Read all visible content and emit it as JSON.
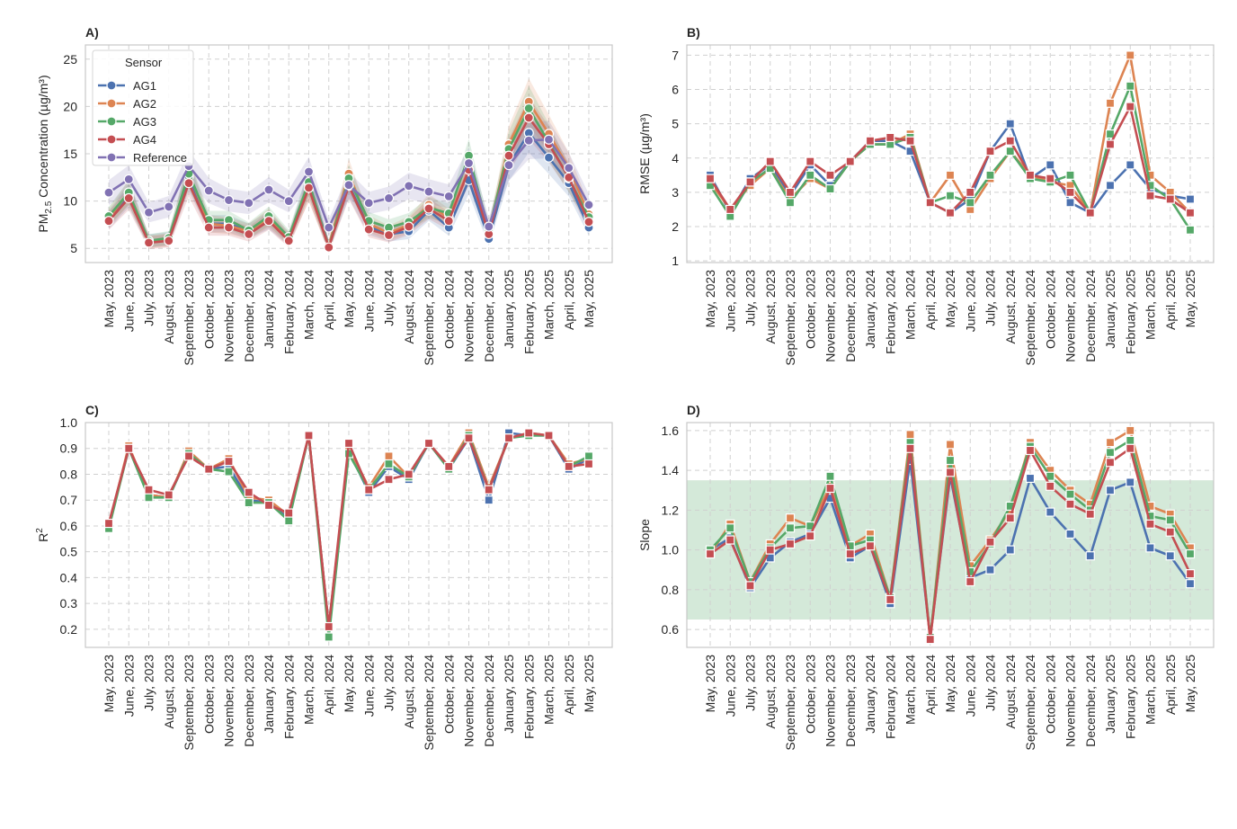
{
  "months": [
    "May, 2023",
    "June, 2023",
    "July, 2023",
    "August, 2023",
    "September, 2023",
    "October, 2023",
    "November, 2023",
    "December, 2023",
    "January, 2024",
    "February, 2024",
    "March, 2024",
    "April, 2024",
    "May, 2024",
    "June, 2024",
    "July, 2024",
    "August, 2024",
    "September, 2024",
    "October, 2024",
    "November, 2024",
    "December, 2024",
    "January, 2025",
    "February, 2025",
    "March, 2025",
    "April, 2025",
    "May, 2025"
  ],
  "colors": {
    "AG1": "#4c72b0",
    "AG2": "#dd8452",
    "AG3": "#55a868",
    "AG4": "#c44e52",
    "Reference": "#8172b3",
    "band": "#55a868"
  },
  "legend": {
    "title": "Sensor",
    "entries": [
      "AG1",
      "AG2",
      "AG3",
      "AG4",
      "Reference"
    ]
  },
  "chart_data": [
    {
      "panel": "A)",
      "type": "line",
      "marker": "circle",
      "ylabel_prefix": "PM",
      "ylabel_sub": "2.5",
      "ylabel_suffix": " Concentration (µg/m³)",
      "ylim": [
        3.5,
        26.5
      ],
      "yticks": [
        5,
        10,
        15,
        20,
        25
      ],
      "ytick_labels": [
        "5",
        "10",
        "15",
        "20",
        "25"
      ],
      "grid": true,
      "legend_position": "top-left",
      "band_spread": 0.12,
      "series": [
        {
          "name": "AG1",
          "values": [
            8.0,
            10.6,
            5.8,
            6.0,
            12.6,
            7.6,
            7.6,
            6.8,
            8.0,
            6.0,
            11.9,
            5.3,
            11.7,
            7.3,
            6.5,
            6.8,
            9.0,
            7.2,
            12.2,
            6.0,
            13.8,
            17.2,
            14.6,
            11.9,
            7.2
          ]
        },
        {
          "name": "AG2",
          "values": [
            8.2,
            10.9,
            5.7,
            5.9,
            13.0,
            7.6,
            7.4,
            6.8,
            8.2,
            6.0,
            11.3,
            5.3,
            12.9,
            7.6,
            6.6,
            7.5,
            9.6,
            8.2,
            13.4,
            6.7,
            16.0,
            20.5,
            17.1,
            13.5,
            8.6
          ]
        },
        {
          "name": "AG3",
          "values": [
            8.4,
            10.9,
            5.8,
            6.1,
            12.9,
            8.0,
            8.0,
            6.9,
            8.4,
            6.2,
            12.0,
            5.1,
            12.4,
            7.9,
            7.2,
            7.8,
            9.3,
            8.7,
            14.8,
            6.9,
            15.5,
            19.8,
            16.2,
            12.4,
            8.3
          ]
        },
        {
          "name": "AG4",
          "values": [
            7.9,
            10.3,
            5.6,
            5.8,
            11.9,
            7.2,
            7.2,
            6.5,
            7.9,
            5.8,
            11.4,
            5.1,
            11.6,
            7.0,
            6.4,
            7.3,
            9.2,
            7.9,
            13.3,
            6.5,
            14.8,
            18.8,
            16.0,
            12.5,
            7.8
          ]
        },
        {
          "name": "Reference",
          "values": [
            10.9,
            12.3,
            8.8,
            9.4,
            13.7,
            11.1,
            10.1,
            9.8,
            11.2,
            10.0,
            13.1,
            7.2,
            11.7,
            9.8,
            10.3,
            11.6,
            11.0,
            10.5,
            14.0,
            7.3,
            13.8,
            16.4,
            16.5,
            13.5,
            9.6
          ]
        }
      ]
    },
    {
      "panel": "B)",
      "type": "line",
      "marker": "square",
      "ylabel": "RMSE (µg/m³)",
      "ylim": [
        0.95,
        7.3
      ],
      "yticks": [
        1,
        2,
        3,
        4,
        5,
        6,
        7
      ],
      "ytick_labels": [
        "1",
        "2",
        "3",
        "4",
        "5",
        "6",
        "7"
      ],
      "grid": true,
      "series": [
        {
          "name": "AG1",
          "values": [
            3.5,
            2.4,
            3.4,
            3.8,
            2.9,
            3.8,
            3.2,
            3.9,
            4.5,
            4.5,
            4.2,
            2.7,
            2.4,
            2.8,
            4.2,
            5.0,
            3.4,
            3.8,
            2.7,
            2.4,
            3.2,
            3.8,
            3.1,
            2.9,
            2.8
          ]
        },
        {
          "name": "AG2",
          "values": [
            3.3,
            2.5,
            3.2,
            3.7,
            2.8,
            3.4,
            3.1,
            3.9,
            4.4,
            4.4,
            4.7,
            2.7,
            3.5,
            2.5,
            3.4,
            4.2,
            3.5,
            3.3,
            3.2,
            2.4,
            5.6,
            7.0,
            3.5,
            3.0,
            2.4
          ]
        },
        {
          "name": "AG3",
          "values": [
            3.2,
            2.3,
            3.3,
            3.7,
            2.7,
            3.5,
            3.1,
            3.9,
            4.4,
            4.4,
            4.6,
            2.7,
            2.9,
            2.7,
            3.5,
            4.2,
            3.4,
            3.3,
            3.5,
            2.4,
            4.7,
            6.1,
            3.2,
            2.8,
            1.9
          ]
        },
        {
          "name": "AG4",
          "values": [
            3.4,
            2.5,
            3.3,
            3.9,
            3.0,
            3.9,
            3.5,
            3.9,
            4.5,
            4.6,
            4.5,
            2.7,
            2.4,
            3.0,
            4.2,
            4.5,
            3.5,
            3.4,
            3.0,
            2.4,
            4.4,
            5.5,
            2.9,
            2.8,
            2.4
          ]
        }
      ]
    },
    {
      "panel": "C)",
      "type": "line",
      "marker": "square",
      "ylabel_prefix": "R",
      "ylabel_sup": "2",
      "ylim": [
        0.13,
        1.0
      ],
      "yticks": [
        0.2,
        0.3,
        0.4,
        0.5,
        0.6,
        0.7,
        0.8,
        0.9,
        1.0
      ],
      "ytick_labels": [
        "0.2",
        "0.3",
        "0.4",
        "0.5",
        "0.6",
        "0.7",
        "0.8",
        "0.9",
        "1.0"
      ],
      "grid": true,
      "series": [
        {
          "name": "AG1",
          "values": [
            0.6,
            0.9,
            0.72,
            0.71,
            0.88,
            0.82,
            0.83,
            0.7,
            0.69,
            0.63,
            0.95,
            0.21,
            0.89,
            0.73,
            0.83,
            0.78,
            0.92,
            0.82,
            0.94,
            0.7,
            0.96,
            0.95,
            0.95,
            0.82,
            0.86
          ]
        },
        {
          "name": "AG2",
          "values": [
            0.6,
            0.91,
            0.72,
            0.71,
            0.89,
            0.82,
            0.86,
            0.71,
            0.7,
            0.64,
            0.95,
            0.21,
            0.9,
            0.75,
            0.87,
            0.79,
            0.92,
            0.83,
            0.96,
            0.75,
            0.94,
            0.96,
            0.95,
            0.84,
            0.86
          ]
        },
        {
          "name": "AG3",
          "values": [
            0.59,
            0.9,
            0.71,
            0.71,
            0.88,
            0.82,
            0.81,
            0.69,
            0.69,
            0.62,
            0.95,
            0.17,
            0.88,
            0.74,
            0.84,
            0.79,
            0.92,
            0.82,
            0.95,
            0.74,
            0.94,
            0.95,
            0.95,
            0.83,
            0.87
          ]
        },
        {
          "name": "AG4",
          "values": [
            0.61,
            0.9,
            0.74,
            0.72,
            0.87,
            0.82,
            0.85,
            0.73,
            0.68,
            0.65,
            0.95,
            0.21,
            0.92,
            0.74,
            0.78,
            0.8,
            0.92,
            0.83,
            0.94,
            0.74,
            0.94,
            0.96,
            0.95,
            0.83,
            0.84
          ]
        }
      ]
    },
    {
      "panel": "D)",
      "type": "line",
      "marker": "square",
      "ylabel": "Slope",
      "ylim": [
        0.51,
        1.64
      ],
      "yticks": [
        0.6,
        0.8,
        1.0,
        1.2,
        1.4,
        1.6
      ],
      "ytick_labels": [
        "0.6",
        "0.8",
        "1.0",
        "1.2",
        "1.4",
        "1.6"
      ],
      "grid": true,
      "shaded_range": [
        0.65,
        1.35
      ],
      "series": [
        {
          "name": "AG1",
          "values": [
            1.0,
            1.06,
            0.81,
            0.96,
            1.04,
            1.08,
            1.26,
            0.96,
            1.02,
            0.73,
            1.45,
            0.56,
            1.37,
            0.86,
            0.9,
            1.0,
            1.36,
            1.19,
            1.08,
            0.97,
            1.3,
            1.34,
            1.01,
            0.97,
            0.83
          ]
        },
        {
          "name": "AG2",
          "values": [
            0.98,
            1.13,
            0.84,
            1.03,
            1.16,
            1.12,
            1.32,
            1.02,
            1.08,
            0.76,
            1.58,
            0.55,
            1.53,
            0.92,
            1.05,
            1.2,
            1.54,
            1.4,
            1.3,
            1.23,
            1.54,
            1.6,
            1.22,
            1.18,
            1.01
          ]
        },
        {
          "name": "AG3",
          "values": [
            1.0,
            1.11,
            0.84,
            1.01,
            1.11,
            1.12,
            1.37,
            1.02,
            1.05,
            0.76,
            1.54,
            0.56,
            1.45,
            0.89,
            1.03,
            1.22,
            1.52,
            1.37,
            1.28,
            1.2,
            1.49,
            1.55,
            1.17,
            1.15,
            0.98
          ]
        },
        {
          "name": "AG4",
          "values": [
            0.98,
            1.05,
            0.82,
            1.0,
            1.03,
            1.07,
            1.31,
            0.98,
            1.02,
            0.75,
            1.51,
            0.55,
            1.39,
            0.84,
            1.04,
            1.16,
            1.5,
            1.32,
            1.23,
            1.18,
            1.44,
            1.51,
            1.13,
            1.09,
            0.88
          ]
        }
      ]
    }
  ]
}
